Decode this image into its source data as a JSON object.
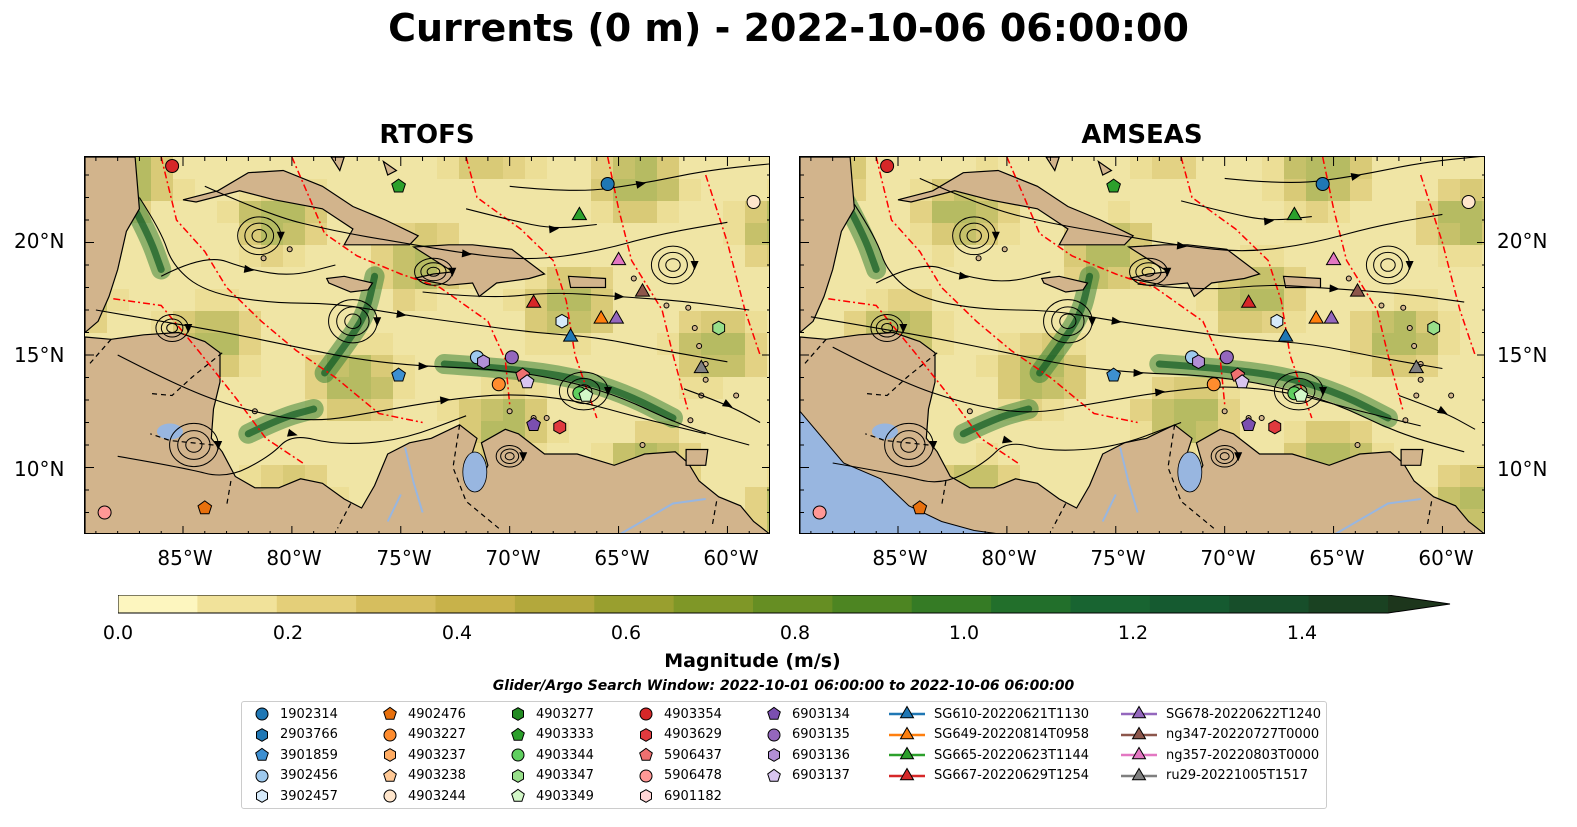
{
  "title": "Currents (0 m) - 2022-10-06 06:00:00",
  "panels": [
    {
      "title": "RTOFS"
    },
    {
      "title": "AMSEAS"
    }
  ],
  "lat_labels": [
    "20°N",
    "15°N",
    "10°N"
  ],
  "lon_labels": [
    "85°W",
    "80°W",
    "75°W",
    "70°W",
    "65°W",
    "60°W"
  ],
  "colorbar": {
    "label": "Magnitude (m/s)",
    "ticks": [
      "0.0",
      "0.2",
      "0.4",
      "0.6",
      "0.8",
      "1.0",
      "1.2",
      "1.4"
    ],
    "min": 0.0,
    "max": 1.5,
    "extend": "max",
    "colors": [
      "#fdf6bf",
      "#f1e29a",
      "#e4cf79",
      "#d6be5e",
      "#c8b24a",
      "#b3a83c",
      "#999f2f",
      "#7f9727",
      "#668e23",
      "#4d8522",
      "#357b25",
      "#226f2b",
      "#186431",
      "#155a30",
      "#174e2a",
      "#1a4222",
      "#1d361c"
    ]
  },
  "search_window": "Glider/Argo Search Window: 2022-10-01 06:00:00 to 2022-10-06 06:00:00",
  "map_extent": {
    "lon_min": -89.5,
    "lon_max": -58.0,
    "lat_min": 7.0,
    "lat_max": 23.8
  },
  "colors": {
    "land": "#d2b48c",
    "water": "#f0e5a5",
    "eez": "#ff0000",
    "lake": "#98b6e0"
  },
  "legend": {
    "columns": [
      [
        {
          "label": "1902314",
          "marker": "circle",
          "color": "#1f77b4"
        },
        {
          "label": "2903766",
          "marker": "hexagon",
          "color": "#1f77b4"
        },
        {
          "label": "3901859",
          "marker": "pentagon",
          "color": "#3d8fd1"
        },
        {
          "label": "3902456",
          "marker": "circle",
          "color": "#9ec9ee"
        },
        {
          "label": "3902457",
          "marker": "hexagon",
          "color": "#d6eafa"
        }
      ],
      [
        {
          "label": "4902476",
          "marker": "pentagon",
          "color": "#e8700c"
        },
        {
          "label": "4903227",
          "marker": "circle",
          "color": "#ff8c2e"
        },
        {
          "label": "4903237",
          "marker": "hexagon",
          "color": "#ffac63"
        },
        {
          "label": "4903238",
          "marker": "pentagon",
          "color": "#ffc996"
        },
        {
          "label": "4903244",
          "marker": "circle",
          "color": "#ffe6cc"
        }
      ],
      [
        {
          "label": "4903277",
          "marker": "hexagon",
          "color": "#228b22"
        },
        {
          "label": "4903333",
          "marker": "pentagon",
          "color": "#2ca02c"
        },
        {
          "label": "4903344",
          "marker": "circle",
          "color": "#5fcf5f"
        },
        {
          "label": "4903347",
          "marker": "hexagon",
          "color": "#98df8a"
        },
        {
          "label": "4903349",
          "marker": "pentagon",
          "color": "#d3f7c8"
        }
      ],
      [
        {
          "label": "4903354",
          "marker": "circle",
          "color": "#d62728"
        },
        {
          "label": "4903629",
          "marker": "hexagon",
          "color": "#e03a3e"
        },
        {
          "label": "5906437",
          "marker": "pentagon",
          "color": "#f07070"
        },
        {
          "label": "5906478",
          "marker": "circle",
          "color": "#ff9896"
        },
        {
          "label": "6901182",
          "marker": "hexagon",
          "color": "#ffd5d5"
        }
      ],
      [
        {
          "label": "6903134",
          "marker": "pentagon",
          "color": "#7b4fb0"
        },
        {
          "label": "6903135",
          "marker": "circle",
          "color": "#9467bd"
        },
        {
          "label": "6903136",
          "marker": "hexagon",
          "color": "#b28fd6"
        },
        {
          "label": "6903137",
          "marker": "pentagon",
          "color": "#d9c5f0"
        }
      ],
      [
        {
          "label": "SG610-20220621T1130",
          "marker": "triangle",
          "color": "#1f77b4"
        },
        {
          "label": "SG649-20220814T0958",
          "marker": "triangle",
          "color": "#ff7f0e"
        },
        {
          "label": "SG665-20220623T1144",
          "marker": "triangle",
          "color": "#2ca02c"
        },
        {
          "label": "SG667-20220629T1254",
          "marker": "triangle",
          "color": "#d62728"
        }
      ],
      [
        {
          "label": "SG678-20220622T1240",
          "marker": "triangle",
          "color": "#9467bd"
        },
        {
          "label": "ng347-20220727T0000",
          "marker": "triangle",
          "color": "#8c564b"
        },
        {
          "label": "ng357-20220803T0000",
          "marker": "triangle",
          "color": "#e377c2"
        },
        {
          "label": "ru29-20221005T1517",
          "marker": "triangle",
          "color": "#7f7f7f"
        }
      ]
    ]
  },
  "floats": [
    {
      "id": "4903354",
      "marker": "circle",
      "color": "#d62728",
      "lon": -85.5,
      "lat": 23.4
    },
    {
      "id": "4903333",
      "marker": "pentagon",
      "color": "#2ca02c",
      "lon": -75.1,
      "lat": 22.5
    },
    {
      "id": "1902314",
      "marker": "circle",
      "color": "#1f77b4",
      "lon": -65.5,
      "lat": 22.6
    },
    {
      "id": "4903244",
      "marker": "circle",
      "color": "#ffe6cc",
      "lon": -58.8,
      "lat": 21.8
    },
    {
      "id": "SG665-20220623T1144",
      "marker": "triangle",
      "color": "#2ca02c",
      "lon": -66.8,
      "lat": 21.2
    },
    {
      "id": "ng357-20220803T0000",
      "marker": "triangle",
      "color": "#e377c2",
      "lon": -65.0,
      "lat": 19.2
    },
    {
      "id": "ng347-20220727T0000",
      "marker": "triangle",
      "color": "#8c564b",
      "lon": -63.9,
      "lat": 17.8
    },
    {
      "id": "SG667-20220629T1254",
      "marker": "triangle",
      "color": "#d62728",
      "lon": -68.9,
      "lat": 17.3
    },
    {
      "id": "3902457",
      "marker": "hexagon",
      "color": "#d6eafa",
      "lon": -67.6,
      "lat": 16.5
    },
    {
      "id": "SG649-20220814T0958",
      "marker": "triangle",
      "color": "#ff7f0e",
      "lon": -65.8,
      "lat": 16.6
    },
    {
      "id": "SG678-20220622T1240",
      "marker": "triangle",
      "color": "#9467bd",
      "lon": -65.1,
      "lat": 16.6
    },
    {
      "id": "SG610-20220621T1130",
      "marker": "triangle",
      "color": "#1f77b4",
      "lon": -67.2,
      "lat": 15.8
    },
    {
      "id": "4903347",
      "marker": "hexagon",
      "color": "#98df8a",
      "lon": -60.4,
      "lat": 16.2
    },
    {
      "id": "3902456",
      "marker": "circle",
      "color": "#9ec9ee",
      "lon": -71.5,
      "lat": 14.9
    },
    {
      "id": "6903136",
      "marker": "hexagon",
      "color": "#b28fd6",
      "lon": -71.2,
      "lat": 14.7
    },
    {
      "id": "6903135",
      "marker": "circle",
      "color": "#9467bd",
      "lon": -69.9,
      "lat": 14.9
    },
    {
      "id": "5906437",
      "marker": "pentagon",
      "color": "#f07070",
      "lon": -69.4,
      "lat": 14.1
    },
    {
      "id": "6903137",
      "marker": "pentagon",
      "color": "#d9c5f0",
      "lon": -69.2,
      "lat": 13.8
    },
    {
      "id": "4903227",
      "marker": "circle",
      "color": "#ff8c2e",
      "lon": -70.5,
      "lat": 13.7
    },
    {
      "id": "3901859",
      "marker": "pentagon",
      "color": "#3d8fd1",
      "lon": -75.1,
      "lat": 14.1
    },
    {
      "id": "ru29-20221005T1517",
      "marker": "triangle",
      "color": "#7f7f7f",
      "lon": -61.2,
      "lat": 14.4
    },
    {
      "id": "4903344",
      "marker": "circle",
      "color": "#5fcf5f",
      "lon": -66.8,
      "lat": 13.3
    },
    {
      "id": "4903349",
      "marker": "pentagon",
      "color": "#d3f7c8",
      "lon": -66.5,
      "lat": 13.2
    },
    {
      "id": "6903134",
      "marker": "pentagon",
      "color": "#7b4fb0",
      "lon": -68.9,
      "lat": 11.9
    },
    {
      "id": "4903629",
      "marker": "hexagon",
      "color": "#e03a3e",
      "lon": -67.7,
      "lat": 11.8
    },
    {
      "id": "5906478",
      "marker": "circle",
      "color": "#ff9896",
      "lon": -88.6,
      "lat": 8.0
    },
    {
      "id": "4902476",
      "marker": "pentagon",
      "color": "#e8700c",
      "lon": -84.0,
      "lat": 8.2
    }
  ]
}
